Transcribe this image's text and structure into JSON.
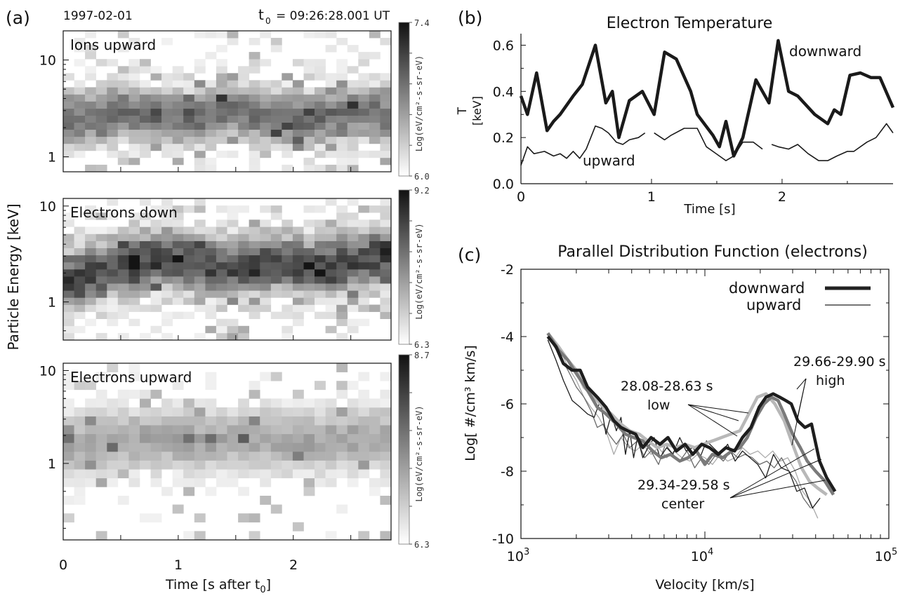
{
  "panel_a": {
    "letter": "(a)",
    "date": "1997-02-01",
    "t0_label": "t",
    "t0_sub": "0",
    "t0_time": "=  09:26:28.001 UT",
    "ylabel": "Particle Energy  [keV]",
    "xlabel_main": "Time [s after t",
    "xlabel_sub": "0",
    "xlabel_end": "]",
    "xticks": [
      "0",
      "1",
      "2"
    ],
    "colorbar_label": "Log(eV/cm²-s-sr-eV)"
  },
  "panel_b": {
    "letter": "(b)",
    "ylabel": "T",
    "ylabel_unit": "[keV]",
    "xlabel": "Time [s]",
    "label_downward": "downward",
    "label_upward": "upward"
  },
  "panel_c": {
    "letter": "(c)",
    "ylabel": "Log[ #/cm³ km/s]",
    "xlabel": "Velocity  [km/s]",
    "legend_downward": "downward",
    "legend_upward": "upward",
    "ann_low_range": "28.08-28.63 s",
    "ann_low": "low",
    "ann_high_range": "29.66-29.90 s",
    "ann_high": "high",
    "ann_center_range": "29.34-29.58 s",
    "ann_center": "center",
    "xtick_base": "10",
    "xtick_exps": [
      "3",
      "4",
      "5"
    ]
  },
  "chart_data": [
    {
      "type": "heatmap",
      "title": "Ions upward",
      "x_range": [
        0,
        2.85
      ],
      "ylim": [
        0.7,
        20
      ],
      "y_scale": "log",
      "yticks": [
        "1",
        "10"
      ],
      "colorbar": {
        "max": "7.4",
        "min": "6.0"
      },
      "band": {
        "center_keV": [
          2.3,
          2.6,
          3.0,
          2.7,
          2.4,
          2.6,
          3.2,
          2.8,
          2.5,
          2.4,
          2.7,
          3.0,
          2.6
        ],
        "width": 0.42,
        "level": 0.62
      },
      "seed": 7
    },
    {
      "type": "heatmap",
      "title": "Electrons down",
      "x_range": [
        0,
        2.85
      ],
      "ylim": [
        0.4,
        12
      ],
      "y_scale": "log",
      "yticks": [
        "1",
        "10"
      ],
      "colorbar": {
        "max": "9.2",
        "min": "6.3"
      },
      "band": {
        "center_keV": [
          1.7,
          2.0,
          2.4,
          2.7,
          2.8,
          2.5,
          2.2,
          2.5,
          2.6,
          2.3,
          2.4,
          2.7,
          3.0
        ],
        "width": 0.45,
        "level": 0.78
      },
      "seed": 19
    },
    {
      "type": "heatmap",
      "title": "Electrons upward",
      "x_range": [
        0,
        2.85
      ],
      "ylim": [
        0.15,
        12
      ],
      "y_scale": "log",
      "yticks": [
        "1",
        "10"
      ],
      "colorbar": {
        "max": "8.7",
        "min": "6.3"
      },
      "band": {
        "center_keV": [
          1.5,
          1.6,
          1.8,
          1.9,
          1.8,
          1.7,
          1.8,
          1.9,
          1.8,
          1.7,
          1.8,
          1.9,
          1.9
        ],
        "width": 0.5,
        "level": 0.38
      },
      "seed": 31
    },
    {
      "type": "line",
      "title": "Electron Temperature",
      "xlim": [
        0,
        2.85
      ],
      "ylim": [
        0,
        0.65
      ],
      "xticks": [
        "0",
        "1",
        "2"
      ],
      "yticks": [
        "0.0",
        "0.2",
        "0.4",
        "0.6"
      ],
      "series": [
        {
          "name": "downward",
          "x": [
            0,
            0.05,
            0.12,
            0.2,
            0.25,
            0.3,
            0.4,
            0.47,
            0.57,
            0.65,
            0.7,
            0.75,
            0.83,
            0.93,
            1.02,
            1.1,
            1.19,
            1.3,
            1.35,
            1.47,
            1.52,
            1.57,
            1.63,
            1.7,
            1.8,
            1.9,
            1.97,
            2.05,
            2.12,
            2.25,
            2.35,
            2.4,
            2.45,
            2.52,
            2.6,
            2.68,
            2.75,
            2.85
          ],
          "y": [
            0.38,
            0.3,
            0.48,
            0.23,
            0.27,
            0.3,
            0.38,
            0.43,
            0.6,
            0.35,
            0.4,
            0.2,
            0.36,
            0.4,
            0.3,
            0.57,
            0.54,
            0.4,
            0.3,
            0.21,
            0.16,
            0.27,
            0.12,
            0.2,
            0.45,
            0.35,
            0.62,
            0.4,
            0.38,
            0.3,
            0.26,
            0.32,
            0.3,
            0.47,
            0.48,
            0.46,
            0.46,
            0.33
          ]
        },
        {
          "name": "upward",
          "x": [
            0,
            0.05,
            0.1,
            0.18,
            0.25,
            0.3,
            0.35,
            0.4,
            0.45,
            0.5,
            0.57,
            0.62,
            0.67,
            0.73,
            0.78,
            0.83,
            0.9,
            0.95,
            null,
            1.02,
            1.1,
            1.15,
            1.25,
            1.3,
            1.35,
            1.42,
            1.47,
            1.52,
            1.57,
            1.63,
            1.7,
            1.78,
            1.85,
            null,
            1.92,
            1.97,
            2.05,
            2.12,
            2.2,
            2.28,
            2.35,
            2.42,
            2.5,
            2.55,
            2.65,
            2.72,
            2.8,
            2.85
          ],
          "y": [
            0.08,
            0.16,
            0.13,
            0.14,
            0.12,
            0.13,
            0.11,
            0.14,
            0.11,
            0.15,
            0.25,
            0.24,
            0.22,
            0.18,
            0.17,
            0.19,
            0.2,
            0.22,
            null,
            0.22,
            0.19,
            0.21,
            0.24,
            0.24,
            0.24,
            0.16,
            0.14,
            0.12,
            0.1,
            0.12,
            0.18,
            0.18,
            0.15,
            null,
            0.17,
            0.16,
            0.15,
            0.17,
            0.13,
            0.1,
            0.1,
            0.12,
            0.14,
            0.14,
            0.18,
            0.2,
            0.26,
            0.22
          ]
        }
      ]
    },
    {
      "type": "line",
      "title": "Parallel Distribution Function (electrons)",
      "x_scale": "log",
      "xlim": [
        1000,
        100000
      ],
      "ylim": [
        -10,
        -2
      ],
      "yticks": [
        "-2",
        "-4",
        "-6",
        "-8",
        "-10"
      ],
      "series": [
        {
          "name": "downward",
          "style": "thick-black",
          "x": [
            1400,
            1550,
            1700,
            1900,
            2100,
            2300,
            2600,
            2900,
            3200,
            3500,
            3800,
            4200,
            4600,
            5100,
            5700,
            6300,
            7000,
            7800,
            8600,
            9600,
            10600,
            11800,
            13000,
            14500,
            16000,
            17800,
            19700,
            21500,
            23500,
            25500,
            27500,
            29500,
            32000,
            35000,
            38000,
            42000,
            46000,
            51000
          ],
          "y": [
            -4.0,
            -4.3,
            -4.8,
            -5.0,
            -5.0,
            -5.5,
            -5.8,
            -6.1,
            -6.5,
            -6.7,
            -6.8,
            -6.9,
            -7.3,
            -7.0,
            -7.2,
            -7.0,
            -7.4,
            -7.2,
            -7.5,
            -7.2,
            -7.3,
            -7.5,
            -7.3,
            -7.4,
            -7.0,
            -6.7,
            -6.1,
            -5.8,
            -5.7,
            -5.8,
            -5.9,
            -6.0,
            -6.5,
            -6.7,
            -6.6,
            -7.7,
            -8.2,
            -8.6
          ]
        },
        {
          "name": "downward",
          "style": "thick-gray",
          "x": [
            1400,
            1600,
            1800,
            2000,
            2300,
            2600,
            2900,
            3300,
            3700,
            4100,
            4600,
            5200,
            5800,
            6500,
            7300,
            8100,
            9000,
            10000,
            11000,
            12500,
            14000,
            15500,
            17000,
            19000,
            21000,
            23000,
            25000,
            27000,
            30000,
            33000,
            36000,
            40000,
            45000,
            50000
          ],
          "y": [
            -3.9,
            -4.4,
            -4.7,
            -5.1,
            -5.6,
            -6.1,
            -6.3,
            -6.6,
            -6.9,
            -7.0,
            -7.1,
            -7.4,
            -7.6,
            -7.5,
            -7.7,
            -7.6,
            -7.4,
            -7.8,
            -7.5,
            -7.6,
            -7.4,
            -7.3,
            -7.0,
            -6.4,
            -6.0,
            -5.8,
            -5.9,
            -6.3,
            -6.9,
            -7.3,
            -7.7,
            -8.0,
            -8.3,
            -8.7
          ]
        },
        {
          "name": "downward",
          "style": "thick-lightgray",
          "x": [
            1400,
            1600,
            1800,
            2000,
            2200,
            2500,
            2800,
            3100,
            3500,
            3900,
            4400,
            4900,
            5500,
            6200,
            7000,
            7800,
            8800,
            9800,
            11000,
            12300,
            13800,
            15500,
            17300,
            19300,
            21500,
            24000,
            27000,
            30000,
            33500,
            37000,
            41000,
            46000
          ],
          "y": [
            -3.9,
            -4.3,
            -4.7,
            -5.0,
            -5.5,
            -5.8,
            -6.1,
            -6.3,
            -6.6,
            -6.8,
            -6.9,
            -7.1,
            -7.3,
            -7.2,
            -7.3,
            -7.2,
            -7.3,
            -7.2,
            -7.1,
            -7.0,
            -6.9,
            -6.8,
            -6.3,
            -5.8,
            -5.7,
            -6.0,
            -6.5,
            -7.2,
            -7.9,
            -8.3,
            -8.5,
            -8.7
          ]
        },
        {
          "name": "upward",
          "style": "thin-black",
          "x": [
            1400,
            1550,
            1700,
            1900,
            2100,
            2300,
            2500,
            2700,
            2900,
            3100,
            3300,
            3500,
            3700,
            3900,
            4100,
            4300,
            4600,
            4900,
            5300,
            5700,
            6200,
            6700,
            7300,
            7900,
            8600,
            9400,
            10200,
            11100,
            12100,
            13300,
            14600,
            16000,
            17600,
            19400,
            21400,
            23600,
            26000,
            28700,
            31600,
            34800,
            38400,
            42300
          ],
          "y": [
            -4.1,
            -4.7,
            -5.3,
            -5.9,
            -6.1,
            -6.3,
            -6.4,
            -5.9,
            -6.9,
            -6.3,
            -6.8,
            -6.4,
            -7.5,
            -6.8,
            -7.6,
            -7.0,
            -7.6,
            -7.3,
            -7.0,
            -7.6,
            -7.3,
            -7.5,
            -7.0,
            -7.4,
            -7.3,
            -7.6,
            -7.1,
            -7.3,
            -7.5,
            -7.2,
            -7.7,
            -7.4,
            -7.6,
            -7.8,
            -8.2,
            -7.5,
            -7.9,
            -8.0,
            -8.6,
            -8.5,
            -9.1,
            -8.8
          ]
        },
        {
          "name": "upward",
          "style": "thin-gray",
          "x": [
            1400,
            1600,
            1800,
            2000,
            2200,
            2400,
            2600,
            2800,
            3000,
            3300,
            3600,
            3900,
            4300,
            4700,
            5100,
            5600,
            6100,
            6700,
            7300,
            8000,
            8800,
            9600,
            10500,
            11500,
            12600,
            13800,
            15100,
            16500,
            18100,
            19800,
            21700,
            23800,
            26100,
            28600,
            31300,
            34300,
            37600
          ],
          "y": [
            -4.0,
            -4.5,
            -5.0,
            -5.5,
            -5.8,
            -6.2,
            -6.7,
            -6.6,
            -6.9,
            -7.2,
            -6.9,
            -7.3,
            -7.1,
            -7.6,
            -7.4,
            -7.8,
            -7.2,
            -7.5,
            -7.7,
            -7.4,
            -7.9,
            -7.6,
            -7.8,
            -7.5,
            -7.7,
            -7.4,
            -7.6,
            -7.5,
            -7.6,
            -7.8,
            -7.7,
            -7.9,
            -7.6,
            -8.0,
            -8.3,
            -8.8,
            -9.1
          ]
        },
        {
          "name": "upward",
          "style": "thin-lightgray",
          "x": [
            1400,
            1600,
            1800,
            2000,
            2200,
            2400,
            2650,
            2900,
            3200,
            3500,
            3850,
            4200,
            4600,
            5100,
            5600,
            6200,
            6800,
            7500,
            8300,
            9100,
            10000,
            11000,
            12100,
            13300,
            14600,
            16000,
            17600,
            19400,
            21300,
            23400,
            25700,
            28200,
            31000,
            34000,
            37400,
            41100
          ],
          "y": [
            -3.9,
            -4.3,
            -4.9,
            -5.3,
            -5.8,
            -6.1,
            -6.4,
            -6.8,
            -7.5,
            -7.0,
            -7.3,
            -7.4,
            -7.2,
            -7.5,
            -7.3,
            -7.6,
            -7.4,
            -7.6,
            -7.7,
            -7.5,
            -7.6,
            -7.8,
            -7.5,
            -7.7,
            -7.6,
            -7.3,
            -7.5,
            -7.4,
            -7.6,
            -7.4,
            -7.7,
            -7.6,
            -8.0,
            -8.6,
            -8.9,
            -9.4
          ]
        }
      ]
    }
  ]
}
